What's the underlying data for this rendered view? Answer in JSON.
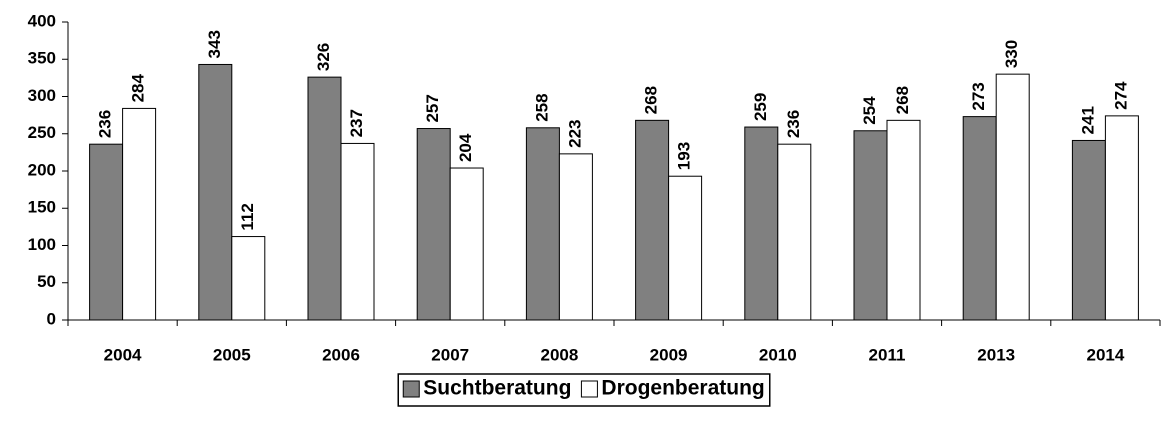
{
  "chart_data": {
    "type": "bar",
    "categories": [
      "2004",
      "2005",
      "2006",
      "2007",
      "2008",
      "2009",
      "2010",
      "2011",
      "2013",
      "2014"
    ],
    "series": [
      {
        "name": "Suchtberatung",
        "color": "#808080",
        "values": [
          236,
          343,
          326,
          257,
          258,
          268,
          259,
          254,
          273,
          241
        ]
      },
      {
        "name": "Drogenberatung",
        "color": "#ffffff",
        "values": [
          284,
          112,
          237,
          204,
          223,
          193,
          236,
          268,
          330,
          274
        ]
      }
    ],
    "ylim": [
      0,
      400
    ],
    "yticks": [
      0,
      50,
      100,
      150,
      200,
      250,
      300,
      350,
      400
    ],
    "grid": false,
    "legend": "bottom"
  }
}
